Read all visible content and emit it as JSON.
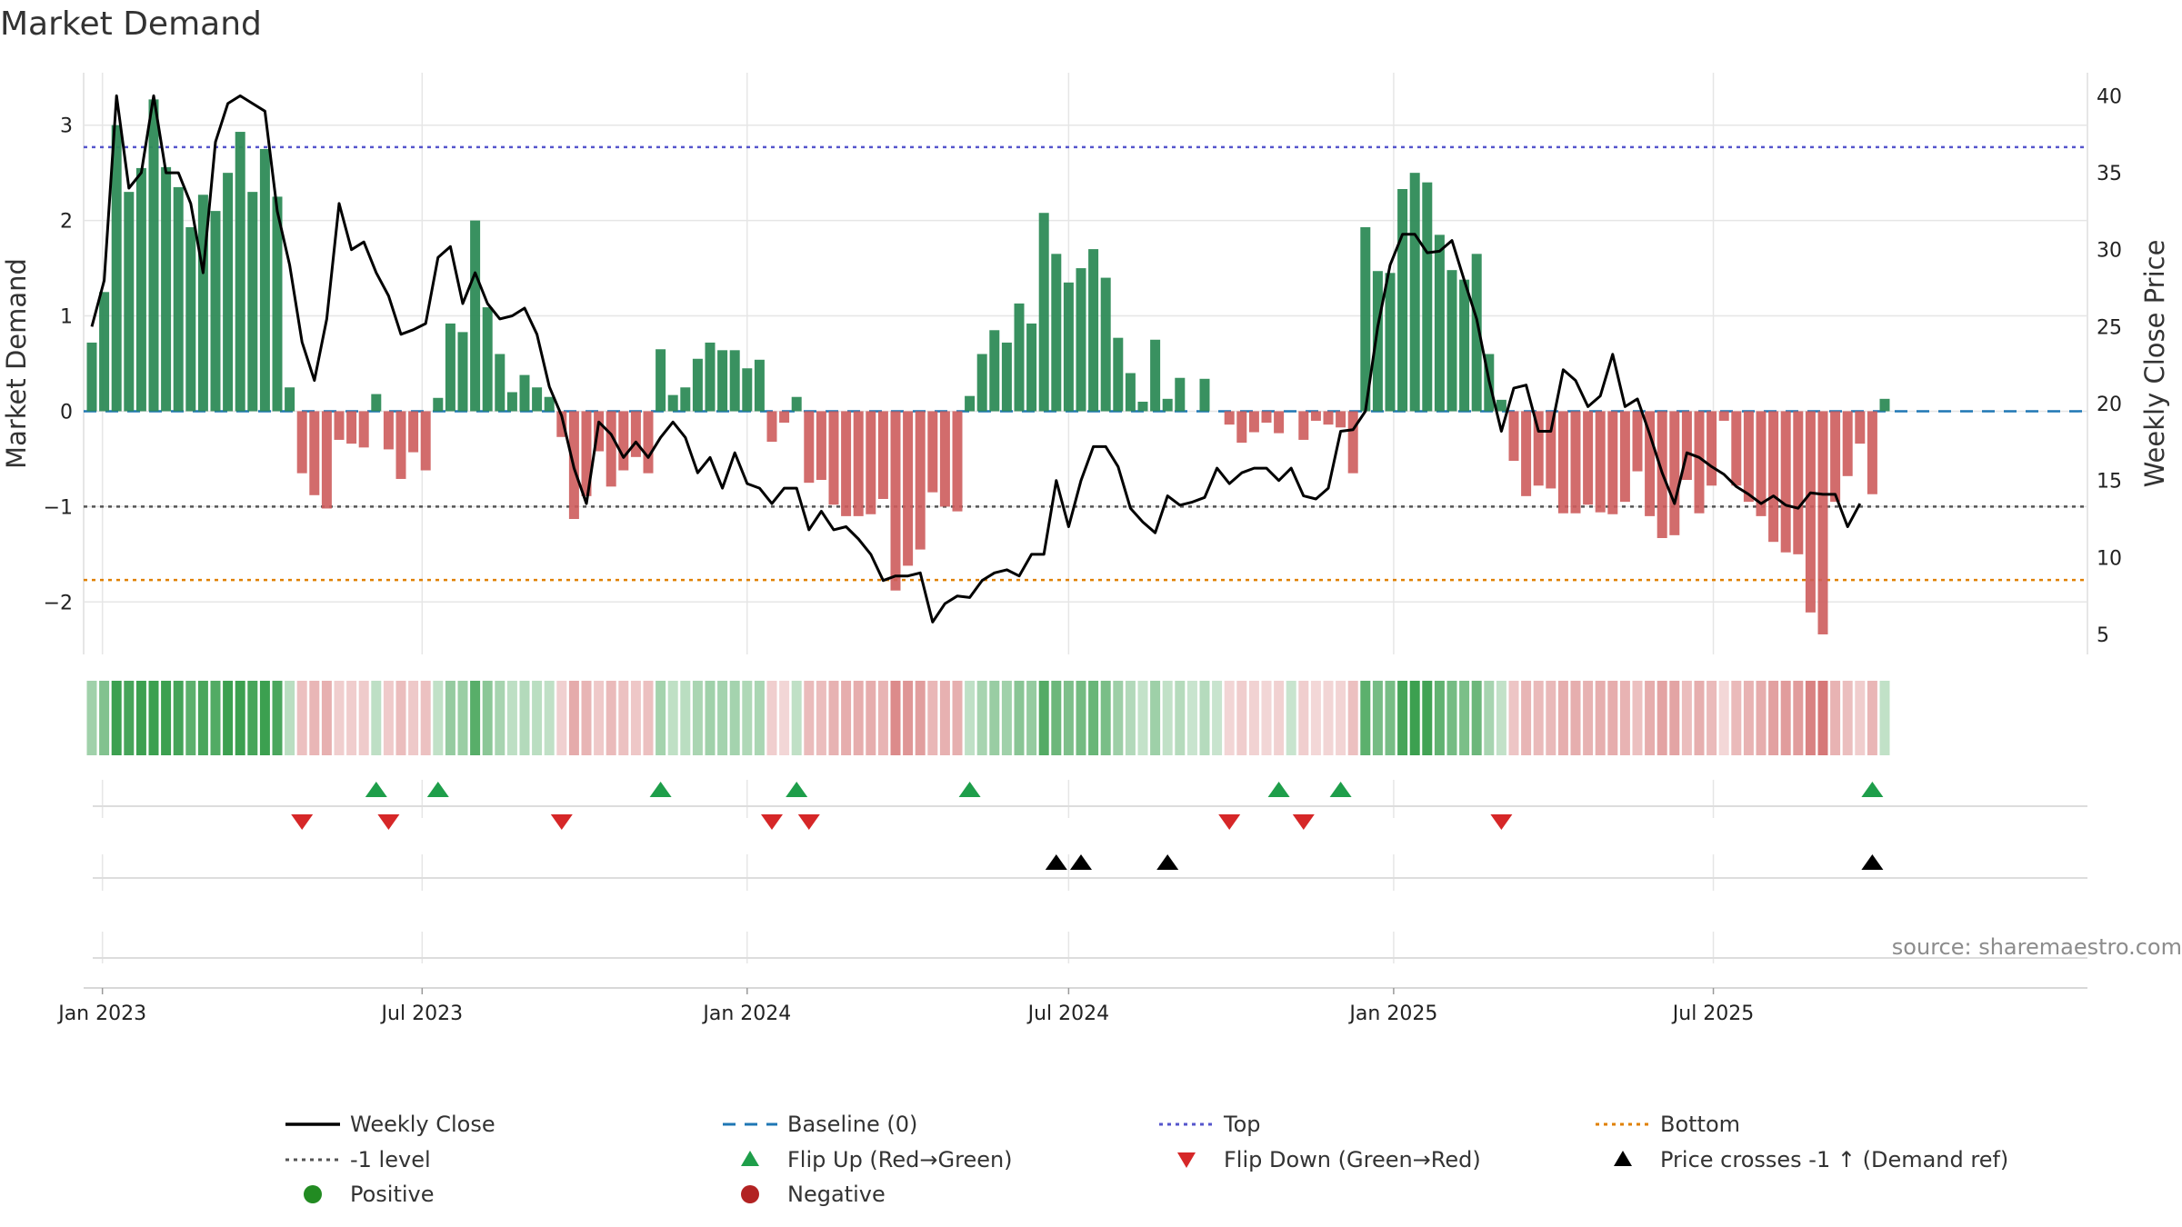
{
  "chart_data": {
    "type": "bar",
    "title": "Market Demand",
    "ylabel": "Market Demand",
    "y2label": "Weekly Close Price",
    "source": "source: sharemaestro.com",
    "start_week": "2022-12-26",
    "ylim": [
      -2.55,
      3.55
    ],
    "y2lim": [
      3.7,
      41.5
    ],
    "y_ticks": [
      3,
      2,
      1,
      0,
      -1,
      -2
    ],
    "y_tick_labels": [
      "3",
      "2",
      "1",
      "0",
      "−1",
      "−2"
    ],
    "y2_ticks": [
      40,
      35,
      30,
      25,
      20,
      15,
      10,
      5
    ],
    "y2_tick_labels": [
      "40",
      "35",
      "30",
      "25",
      "20",
      "15",
      "10",
      "5"
    ],
    "x_ticks": [
      "2023-01-01",
      "2023-07-01",
      "2024-01-01",
      "2024-07-01",
      "2025-01-01",
      "2025-07-01"
    ],
    "x_tick_labels": [
      "Jan 2023",
      "Jul 2023",
      "Jan 2024",
      "Jul 2024",
      "Jan 2025",
      "Jul 2025"
    ],
    "reference_lines": {
      "baseline": 0,
      "top": 2.77,
      "minus_one": -1,
      "bottom": -1.77
    },
    "colors": {
      "positive": "#2e8b57",
      "negative": "#cd5c5c",
      "price": "#000000",
      "baseline": "#1f77b4",
      "top": "#5555cc",
      "minus_one": "#555555",
      "bottom": "#e08000",
      "flip_up": "#1e9e4a",
      "flip_down": "#d62728",
      "cross": "#000000",
      "grid": "#e6e6e6"
    },
    "demand": [
      0.72,
      1.25,
      3.0,
      2.3,
      2.55,
      3.27,
      2.56,
      2.35,
      1.93,
      2.27,
      2.1,
      2.5,
      2.93,
      2.3,
      2.75,
      2.25,
      0.25,
      -0.65,
      -0.88,
      -1.02,
      -0.3,
      -0.34,
      -0.38,
      0.18,
      -0.4,
      -0.71,
      -0.43,
      -0.62,
      0.14,
      0.92,
      0.83,
      2.0,
      1.09,
      0.6,
      0.2,
      0.38,
      0.25,
      0.15,
      -0.27,
      -1.13,
      -0.89,
      -0.42,
      -0.79,
      -0.62,
      -0.48,
      -0.65,
      0.65,
      0.17,
      0.25,
      0.55,
      0.72,
      0.64,
      0.64,
      0.45,
      0.54,
      -0.32,
      -0.12,
      0.15,
      -0.75,
      -0.72,
      -0.98,
      -1.1,
      -1.1,
      -1.08,
      -0.92,
      -1.88,
      -1.62,
      -1.45,
      -0.85,
      -1.0,
      -1.05,
      0.16,
      0.6,
      0.85,
      0.72,
      1.13,
      0.92,
      2.08,
      1.65,
      1.35,
      1.5,
      1.7,
      1.4,
      0.77,
      0.4,
      0.1,
      0.75,
      0.13,
      0.35,
      0.0,
      0.34,
      0.0,
      -0.14,
      -0.33,
      -0.22,
      -0.12,
      -0.23,
      0.0,
      -0.3,
      -0.1,
      -0.14,
      -0.17,
      -0.65,
      1.93,
      1.47,
      1.45,
      2.33,
      2.5,
      2.4,
      1.85,
      1.48,
      1.38,
      1.65,
      0.6,
      0.12,
      -0.52,
      -0.89,
      -0.78,
      -0.81,
      -1.07,
      -1.07,
      -0.98,
      -1.06,
      -1.08,
      -0.95,
      -0.63,
      -1.1,
      -1.33,
      -1.3,
      -0.72,
      -1.07,
      -0.78,
      -0.1,
      -0.78,
      -0.95,
      -1.1,
      -1.37,
      -1.48,
      -1.5,
      -2.11,
      -2.34,
      -0.95,
      -0.68,
      -0.34,
      -0.87,
      0.13
    ],
    "price": [
      25,
      28,
      40,
      34,
      35,
      40,
      35,
      35,
      33,
      28.5,
      37,
      39.5,
      40,
      39.5,
      39,
      32.5,
      29,
      24,
      21.5,
      25.5,
      33,
      30,
      30.5,
      28.5,
      27,
      24.5,
      24.8,
      25.2,
      29.5,
      30.2,
      26.5,
      28.5,
      26.5,
      25.5,
      25.7,
      26.2,
      24.5,
      21.1,
      19.2,
      15.8,
      13.5,
      18.8,
      18,
      16.5,
      17.5,
      16.5,
      17.8,
      18.8,
      17.8,
      15.5,
      16.5,
      14.5,
      16.8,
      14.8,
      14.5,
      13.5,
      14.5,
      14.5,
      11.8,
      13,
      11.8,
      12,
      11.2,
      10.2,
      8.5,
      8.8,
      8.8,
      9,
      5.8,
      7,
      7.5,
      7.4,
      8.5,
      9,
      9.2,
      8.8,
      10.2,
      10.2,
      15,
      12,
      15,
      17.2,
      17.2,
      15.9,
      13.2,
      12.3,
      11.6,
      14,
      13.4,
      13.6,
      13.9,
      15.8,
      14.8,
      15.5,
      15.8,
      15.8,
      15,
      15.8,
      14,
      13.8,
      14.5,
      18.2,
      18.3,
      19.5,
      25,
      29,
      31,
      31,
      29.8,
      29.9,
      30.6,
      28,
      25.5,
      21.5,
      18.2,
      21,
      21.2,
      18.2,
      18.2,
      22.2,
      21.5,
      19.8,
      20.5,
      23.2,
      19.8,
      20.3,
      18,
      15.5,
      13.5,
      16.8,
      16.5,
      15.9,
      15.4,
      14.6,
      14.1,
      13.5,
      14,
      13.4,
      13.2,
      14.2,
      14.1,
      14.1,
      12,
      13.5
    ],
    "flip_up_weeks": [
      23,
      28,
      46,
      57,
      71,
      96,
      101,
      144
    ],
    "flip_down_weeks": [
      17,
      24,
      38,
      55,
      58,
      92,
      98,
      114
    ],
    "price_cross_weeks": [
      78,
      80,
      87,
      144
    ],
    "legend": [
      "Weekly Close",
      "Baseline (0)",
      "Top",
      "Bottom",
      "-1 level",
      "Flip Up (Red→Green)",
      "Flip Down (Green→Red)",
      "Price crosses -1 ↑ (Demand ref)",
      "Positive",
      "Negative"
    ]
  },
  "legend_labels": {
    "weekly_close": "Weekly Close",
    "baseline": "Baseline (0)",
    "top": "Top",
    "bottom": "Bottom",
    "minus_one": "-1 level",
    "flip_up": "Flip Up (Red→Green)",
    "flip_down": "Flip Down (Green→Red)",
    "price_cross": "Price crosses -1 ↑ (Demand ref)",
    "positive": "Positive",
    "negative": "Negative"
  }
}
